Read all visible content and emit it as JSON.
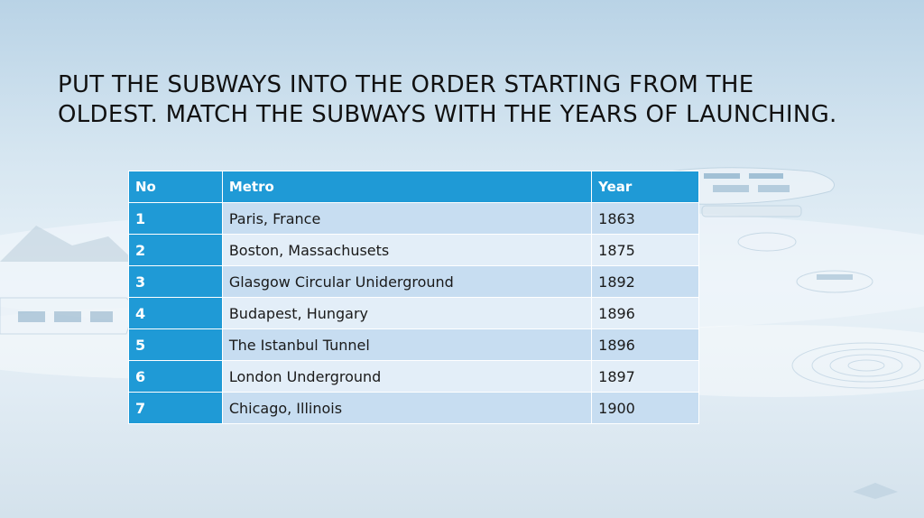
{
  "slide": {
    "title": "PUT THE SUBWAYS INTO THE ORDER STARTING FROM THE OLDEST. MATCH THE SUBWAYS WITH THE YEARS OF LAUNCHING."
  },
  "table": {
    "headers": {
      "no": "No",
      "metro": "Metro",
      "year": "Year"
    },
    "rows": [
      {
        "no": "1",
        "metro": "Paris, France",
        "year": "1863"
      },
      {
        "no": "2",
        "metro": "Boston, Massachusets",
        "year": "1875"
      },
      {
        "no": "3",
        "metro": "Glasgow Circular Uniderground",
        "year": "1892"
      },
      {
        "no": "4",
        "metro": "Budapest, Hungary",
        "year": "1896"
      },
      {
        "no": "5",
        "metro": "The Istanbul Tunnel",
        "year": "1896"
      },
      {
        "no": "6",
        "metro": "London Underground",
        "year": "1897"
      },
      {
        "no": "7",
        "metro": "Chicago, Illinois",
        "year": "1900"
      }
    ]
  },
  "colors": {
    "header_bg": "#1f9ad6",
    "row_light": "#e3eef8",
    "row_dark": "#c7ddf1"
  }
}
